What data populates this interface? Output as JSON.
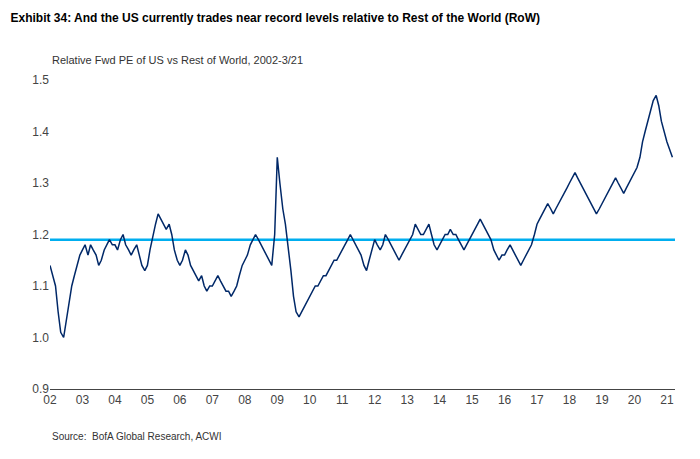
{
  "chart_data": {
    "type": "line",
    "title": "Exhibit 34: And the US currently trades near record levels relative to Rest of the World (RoW)",
    "subtitle": "Relative Fwd PE of US vs Rest of World, 2002-3/21",
    "source": "Source:  BofA Global Research, ACWI",
    "color": "#002868",
    "reference_line": {
      "value": 1.19,
      "color": "#00AEEF"
    },
    "grid": false,
    "xlim": [
      2002,
      2021.25
    ],
    "xticks": [
      {
        "value": 2002,
        "label": "02"
      },
      {
        "value": 2003,
        "label": "03"
      },
      {
        "value": 2004,
        "label": "04"
      },
      {
        "value": 2005,
        "label": "05"
      },
      {
        "value": 2006,
        "label": "06"
      },
      {
        "value": 2007,
        "label": "07"
      },
      {
        "value": 2008,
        "label": "08"
      },
      {
        "value": 2009,
        "label": "09"
      },
      {
        "value": 2010,
        "label": "10"
      },
      {
        "value": 2011,
        "label": "11"
      },
      {
        "value": 2012,
        "label": "12"
      },
      {
        "value": 2013,
        "label": "13"
      },
      {
        "value": 2014,
        "label": "14"
      },
      {
        "value": 2015,
        "label": "15"
      },
      {
        "value": 2016,
        "label": "16"
      },
      {
        "value": 2017,
        "label": "17"
      },
      {
        "value": 2018,
        "label": "18"
      },
      {
        "value": 2019,
        "label": "19"
      },
      {
        "value": 2020,
        "label": "20"
      },
      {
        "value": 2021,
        "label": "21"
      }
    ],
    "ylim": [
      0.9,
      1.5
    ],
    "yticks": [
      0.9,
      {
        "value": 1.0,
        "label": "1.0"
      },
      1.1,
      1.2,
      1.3,
      1.4,
      1.5
    ],
    "x": [
      2002.0,
      2002.08,
      2002.17,
      2002.25,
      2002.33,
      2002.42,
      2002.5,
      2002.58,
      2002.67,
      2002.75,
      2002.83,
      2002.92,
      2003.0,
      2003.08,
      2003.17,
      2003.25,
      2003.33,
      2003.42,
      2003.5,
      2003.58,
      2003.67,
      2003.75,
      2003.83,
      2003.92,
      2004.0,
      2004.08,
      2004.17,
      2004.25,
      2004.33,
      2004.42,
      2004.5,
      2004.58,
      2004.67,
      2004.75,
      2004.83,
      2004.92,
      2005.0,
      2005.08,
      2005.17,
      2005.25,
      2005.33,
      2005.42,
      2005.5,
      2005.58,
      2005.67,
      2005.75,
      2005.83,
      2005.92,
      2006.0,
      2006.08,
      2006.17,
      2006.25,
      2006.33,
      2006.42,
      2006.5,
      2006.58,
      2006.67,
      2006.75,
      2006.83,
      2006.92,
      2007.0,
      2007.08,
      2007.17,
      2007.25,
      2007.33,
      2007.42,
      2007.5,
      2007.58,
      2007.67,
      2007.75,
      2007.83,
      2007.92,
      2008.0,
      2008.08,
      2008.17,
      2008.25,
      2008.33,
      2008.42,
      2008.5,
      2008.58,
      2008.67,
      2008.75,
      2008.83,
      2008.92,
      2009.0,
      2009.08,
      2009.17,
      2009.25,
      2009.33,
      2009.42,
      2009.5,
      2009.58,
      2009.67,
      2009.75,
      2009.83,
      2009.92,
      2010.0,
      2010.08,
      2010.17,
      2010.25,
      2010.33,
      2010.42,
      2010.5,
      2010.58,
      2010.67,
      2010.75,
      2010.83,
      2010.92,
      2011.0,
      2011.08,
      2011.17,
      2011.25,
      2011.33,
      2011.42,
      2011.5,
      2011.58,
      2011.67,
      2011.75,
      2011.83,
      2011.92,
      2012.0,
      2012.08,
      2012.17,
      2012.25,
      2012.33,
      2012.42,
      2012.5,
      2012.58,
      2012.67,
      2012.75,
      2012.83,
      2012.92,
      2013.0,
      2013.08,
      2013.17,
      2013.25,
      2013.33,
      2013.42,
      2013.5,
      2013.58,
      2013.67,
      2013.75,
      2013.83,
      2013.92,
      2014.0,
      2014.08,
      2014.17,
      2014.25,
      2014.33,
      2014.42,
      2014.5,
      2014.58,
      2014.67,
      2014.75,
      2014.83,
      2014.92,
      2015.0,
      2015.08,
      2015.17,
      2015.25,
      2015.33,
      2015.42,
      2015.5,
      2015.58,
      2015.67,
      2015.75,
      2015.83,
      2015.92,
      2016.0,
      2016.08,
      2016.17,
      2016.25,
      2016.33,
      2016.42,
      2016.5,
      2016.58,
      2016.67,
      2016.75,
      2016.83,
      2016.92,
      2017.0,
      2017.08,
      2017.17,
      2017.25,
      2017.33,
      2017.42,
      2017.5,
      2017.58,
      2017.67,
      2017.75,
      2017.83,
      2017.92,
      2018.0,
      2018.08,
      2018.17,
      2018.25,
      2018.33,
      2018.42,
      2018.5,
      2018.58,
      2018.67,
      2018.75,
      2018.83,
      2018.92,
      2019.0,
      2019.08,
      2019.17,
      2019.25,
      2019.33,
      2019.42,
      2019.5,
      2019.58,
      2019.67,
      2019.75,
      2019.83,
      2019.92,
      2020.0,
      2020.08,
      2020.17,
      2020.25,
      2020.33,
      2020.42,
      2020.5,
      2020.58,
      2020.67,
      2020.75,
      2020.83,
      2020.92,
      2021.0,
      2021.17
    ],
    "values": [
      1.14,
      1.12,
      1.1,
      1.05,
      1.01,
      1.0,
      1.03,
      1.06,
      1.1,
      1.12,
      1.14,
      1.16,
      1.17,
      1.18,
      1.16,
      1.18,
      1.17,
      1.16,
      1.14,
      1.15,
      1.17,
      1.18,
      1.19,
      1.18,
      1.18,
      1.17,
      1.19,
      1.2,
      1.18,
      1.17,
      1.16,
      1.17,
      1.18,
      1.16,
      1.14,
      1.13,
      1.14,
      1.17,
      1.2,
      1.22,
      1.24,
      1.23,
      1.22,
      1.21,
      1.22,
      1.2,
      1.17,
      1.15,
      1.14,
      1.15,
      1.17,
      1.16,
      1.14,
      1.13,
      1.12,
      1.11,
      1.12,
      1.1,
      1.09,
      1.1,
      1.1,
      1.11,
      1.12,
      1.11,
      1.1,
      1.09,
      1.09,
      1.08,
      1.09,
      1.1,
      1.12,
      1.14,
      1.15,
      1.16,
      1.18,
      1.19,
      1.2,
      1.19,
      1.18,
      1.17,
      1.16,
      1.15,
      1.14,
      1.2,
      1.35,
      1.3,
      1.25,
      1.22,
      1.18,
      1.13,
      1.08,
      1.05,
      1.04,
      1.05,
      1.06,
      1.07,
      1.08,
      1.09,
      1.1,
      1.1,
      1.11,
      1.12,
      1.12,
      1.13,
      1.14,
      1.15,
      1.15,
      1.16,
      1.17,
      1.18,
      1.19,
      1.2,
      1.19,
      1.18,
      1.17,
      1.16,
      1.14,
      1.13,
      1.15,
      1.17,
      1.19,
      1.18,
      1.17,
      1.18,
      1.2,
      1.19,
      1.18,
      1.17,
      1.16,
      1.15,
      1.16,
      1.17,
      1.18,
      1.19,
      1.2,
      1.22,
      1.21,
      1.2,
      1.2,
      1.21,
      1.22,
      1.2,
      1.18,
      1.17,
      1.18,
      1.19,
      1.2,
      1.2,
      1.21,
      1.2,
      1.2,
      1.19,
      1.18,
      1.17,
      1.18,
      1.19,
      1.2,
      1.21,
      1.22,
      1.23,
      1.22,
      1.21,
      1.2,
      1.19,
      1.17,
      1.16,
      1.15,
      1.16,
      1.16,
      1.17,
      1.18,
      1.17,
      1.16,
      1.15,
      1.14,
      1.15,
      1.16,
      1.17,
      1.18,
      1.2,
      1.22,
      1.23,
      1.24,
      1.25,
      1.26,
      1.25,
      1.24,
      1.25,
      1.26,
      1.27,
      1.28,
      1.29,
      1.3,
      1.31,
      1.32,
      1.31,
      1.3,
      1.29,
      1.28,
      1.27,
      1.26,
      1.25,
      1.24,
      1.25,
      1.26,
      1.27,
      1.28,
      1.29,
      1.3,
      1.31,
      1.3,
      1.29,
      1.28,
      1.29,
      1.3,
      1.31,
      1.32,
      1.33,
      1.35,
      1.38,
      1.4,
      1.42,
      1.44,
      1.46,
      1.47,
      1.45,
      1.42,
      1.4,
      1.38,
      1.35
    ]
  }
}
